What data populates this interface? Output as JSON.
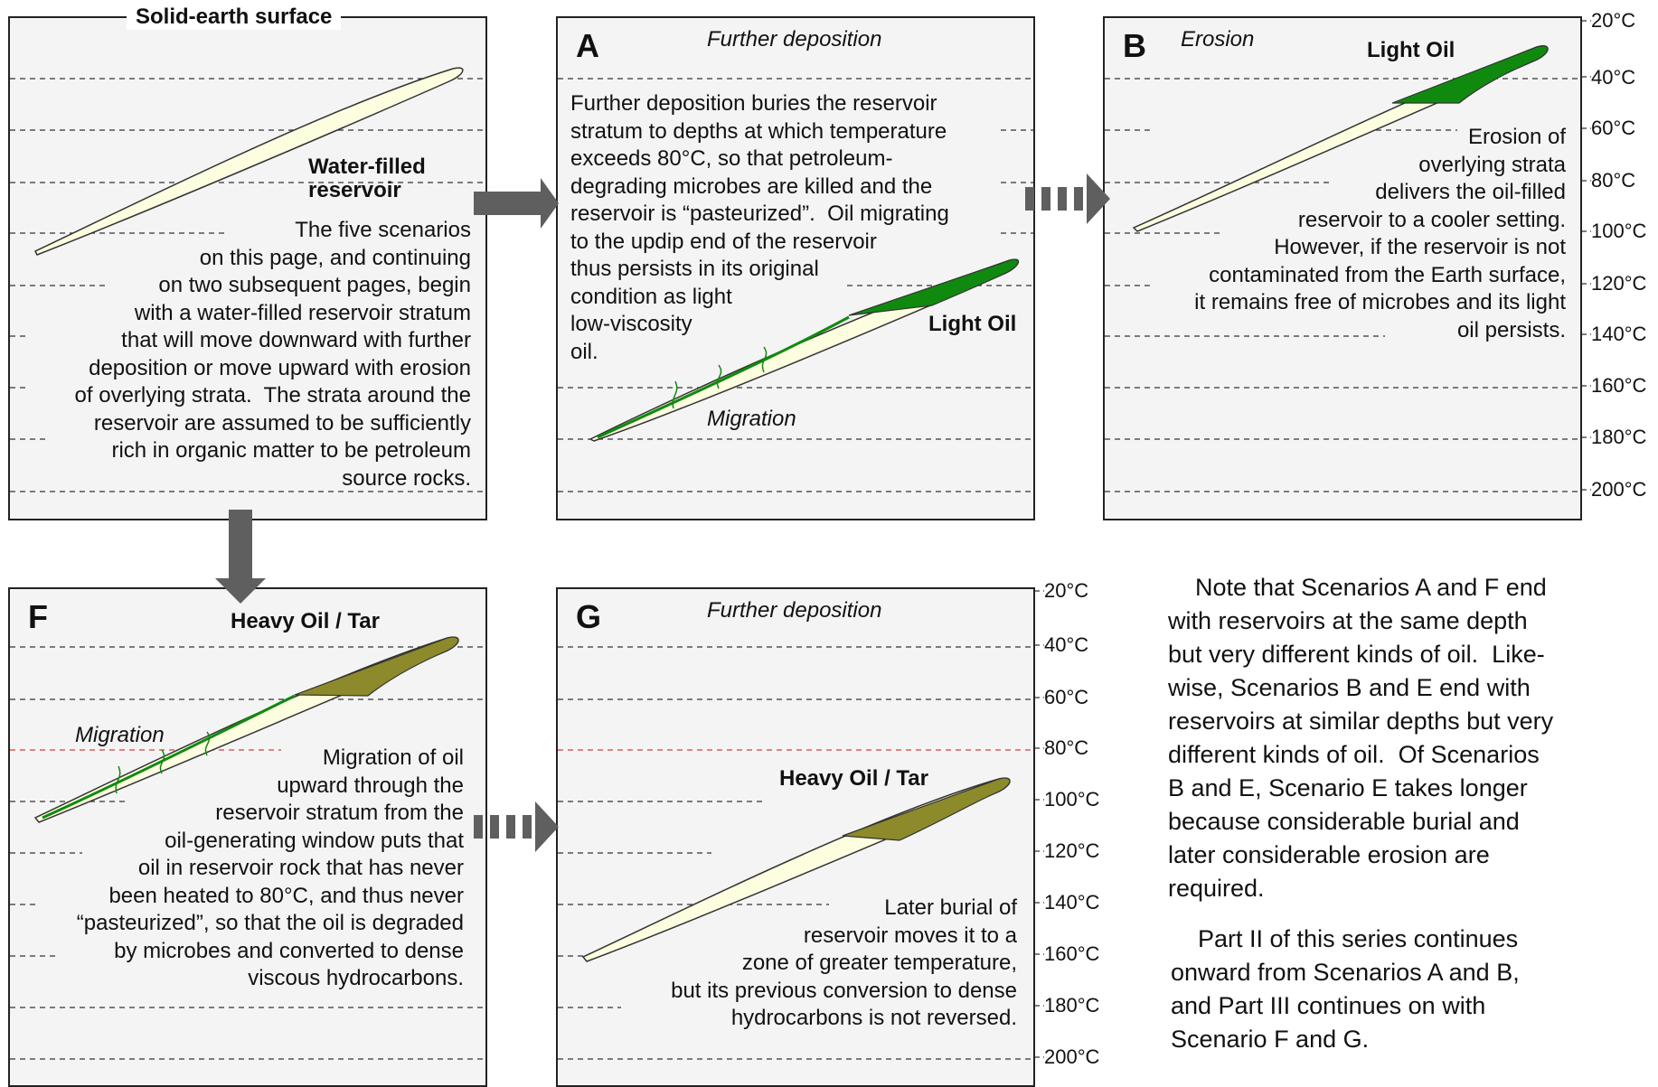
{
  "panel0": {
    "title": "Solid-earth surface",
    "reservoir_label": "Water-filled\nreservoir",
    "text": "The five scenarios\non this page, and continuing\non two subsequent pages, begin\nwith a water-filled reservoir stratum\nthat will move downward with further\ndeposition or move upward with erosion\nof overlying strata.  The strata around the\nreservoir are assumed to be sufficiently\nrich in organic matter to be petroleum\nsource rocks."
  },
  "panelA": {
    "letter": "A",
    "subtitle": "Further deposition",
    "text": "Further deposition buries the reservoir\nstratum to depths at which temperature\nexceeds 80°C, so that petroleum-\ndegrading microbes are killed and the\nreservoir is “pasteurized”.  Oil migrating\nto the updip end of the reservoir\nthus persists in its original\ncondition as light\nlow-viscosity\noil.",
    "oil_label": "Light Oil",
    "migration_label": "Migration"
  },
  "panelB": {
    "letter": "B",
    "subtitle": "Erosion",
    "oil_label": "Light Oil",
    "text": "Erosion of\noverlying strata\ndelivers the oil-filled\nreservoir to a cooler setting.\nHowever, if the reservoir is not\ncontaminated from the Earth surface,\nit remains free of microbes and its light\noil persists."
  },
  "panelF": {
    "letter": "F",
    "oil_label": "Heavy Oil / Tar",
    "migration_label": "Migration",
    "text": "Migration of oil\nupward through the\nreservoir stratum from the\noil-generating window puts that\noil in reservoir rock that has never\nbeen heated to 80°C, and thus never\n“pasteurized”, so that the oil is degraded\nby microbes and converted to dense\nviscous hydrocarbons."
  },
  "panelG": {
    "letter": "G",
    "subtitle": "Further deposition",
    "oil_label": "Heavy Oil / Tar",
    "text": "Later burial of\nreservoir moves it to a\nzone of greater temperature,\nbut its previous conversion to dense\nhydrocarbons is not reversed."
  },
  "temperatures": [
    "20°C",
    "40°C",
    "60°C",
    "80°C",
    "100°C",
    "120°C",
    "140°C",
    "160°C",
    "180°C",
    "200°C"
  ],
  "notes": {
    "p1": "    Note that Scenarios A and F end\nwith reservoirs at the same depth\nbut very different kinds of oil.  Like-\nwise, Scenarios B and E end with\nreservoirs at similar depths but very\ndifferent kinds of oil.  Of Scenarios\nB and E, Scenario E takes longer\nbecause considerable burial and\nlater considerable erosion are\nrequired.",
    "p2": "    Part II of this series continues\nonward from Scenarios A and B,\nand Part III continues on with\nScenario F and G."
  },
  "colors": {
    "light_oil": "#0f8a0f",
    "heavy_oil": "#8c8a2a",
    "reservoir": "#fdfde0",
    "arrow": "#5f5f5f",
    "threshold_line": "#d04040"
  }
}
